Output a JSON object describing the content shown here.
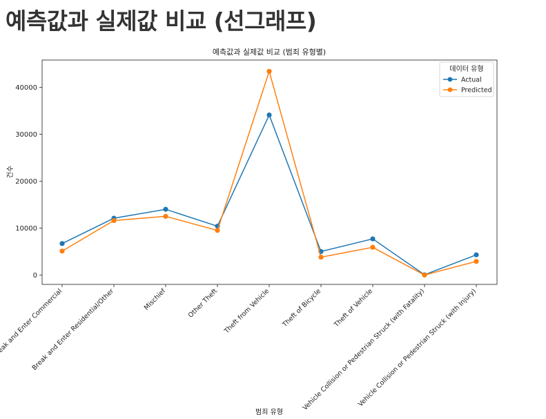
{
  "page": {
    "heading": "예측값과 실제값 비교 (선그래프)"
  },
  "chart_data": {
    "type": "line",
    "title": "예측값과 실제값 비교 (범죄 유형별)",
    "xlabel": "범죄 유형",
    "ylabel": "건수",
    "categories": [
      "Break and Enter Commercial",
      "Break and Enter Residential/Other",
      "Mischief",
      "Other Theft",
      "Theft from Vehicle",
      "Theft of Bicycle",
      "Theft of Vehicle",
      "Vehicle Collision or Pedestrian Struck (with Fatality)",
      "Vehicle Collision or Pedestrian Struck (with Injury)"
    ],
    "series": [
      {
        "name": "Actual",
        "color": "#1f77b4",
        "values": [
          6700,
          12100,
          14000,
          10400,
          34100,
          5000,
          7700,
          50,
          4300
        ]
      },
      {
        "name": "Predicted",
        "color": "#ff7f0e",
        "values": [
          5100,
          11600,
          12500,
          9500,
          43400,
          3800,
          5900,
          0,
          2900
        ]
      }
    ],
    "ylim": [
      -2000,
      45800
    ],
    "yticks": [
      0,
      10000,
      20000,
      30000,
      40000
    ],
    "legend": {
      "title": "데이터 유형",
      "placement": "top-right"
    },
    "grid": false,
    "marker": "circle"
  }
}
